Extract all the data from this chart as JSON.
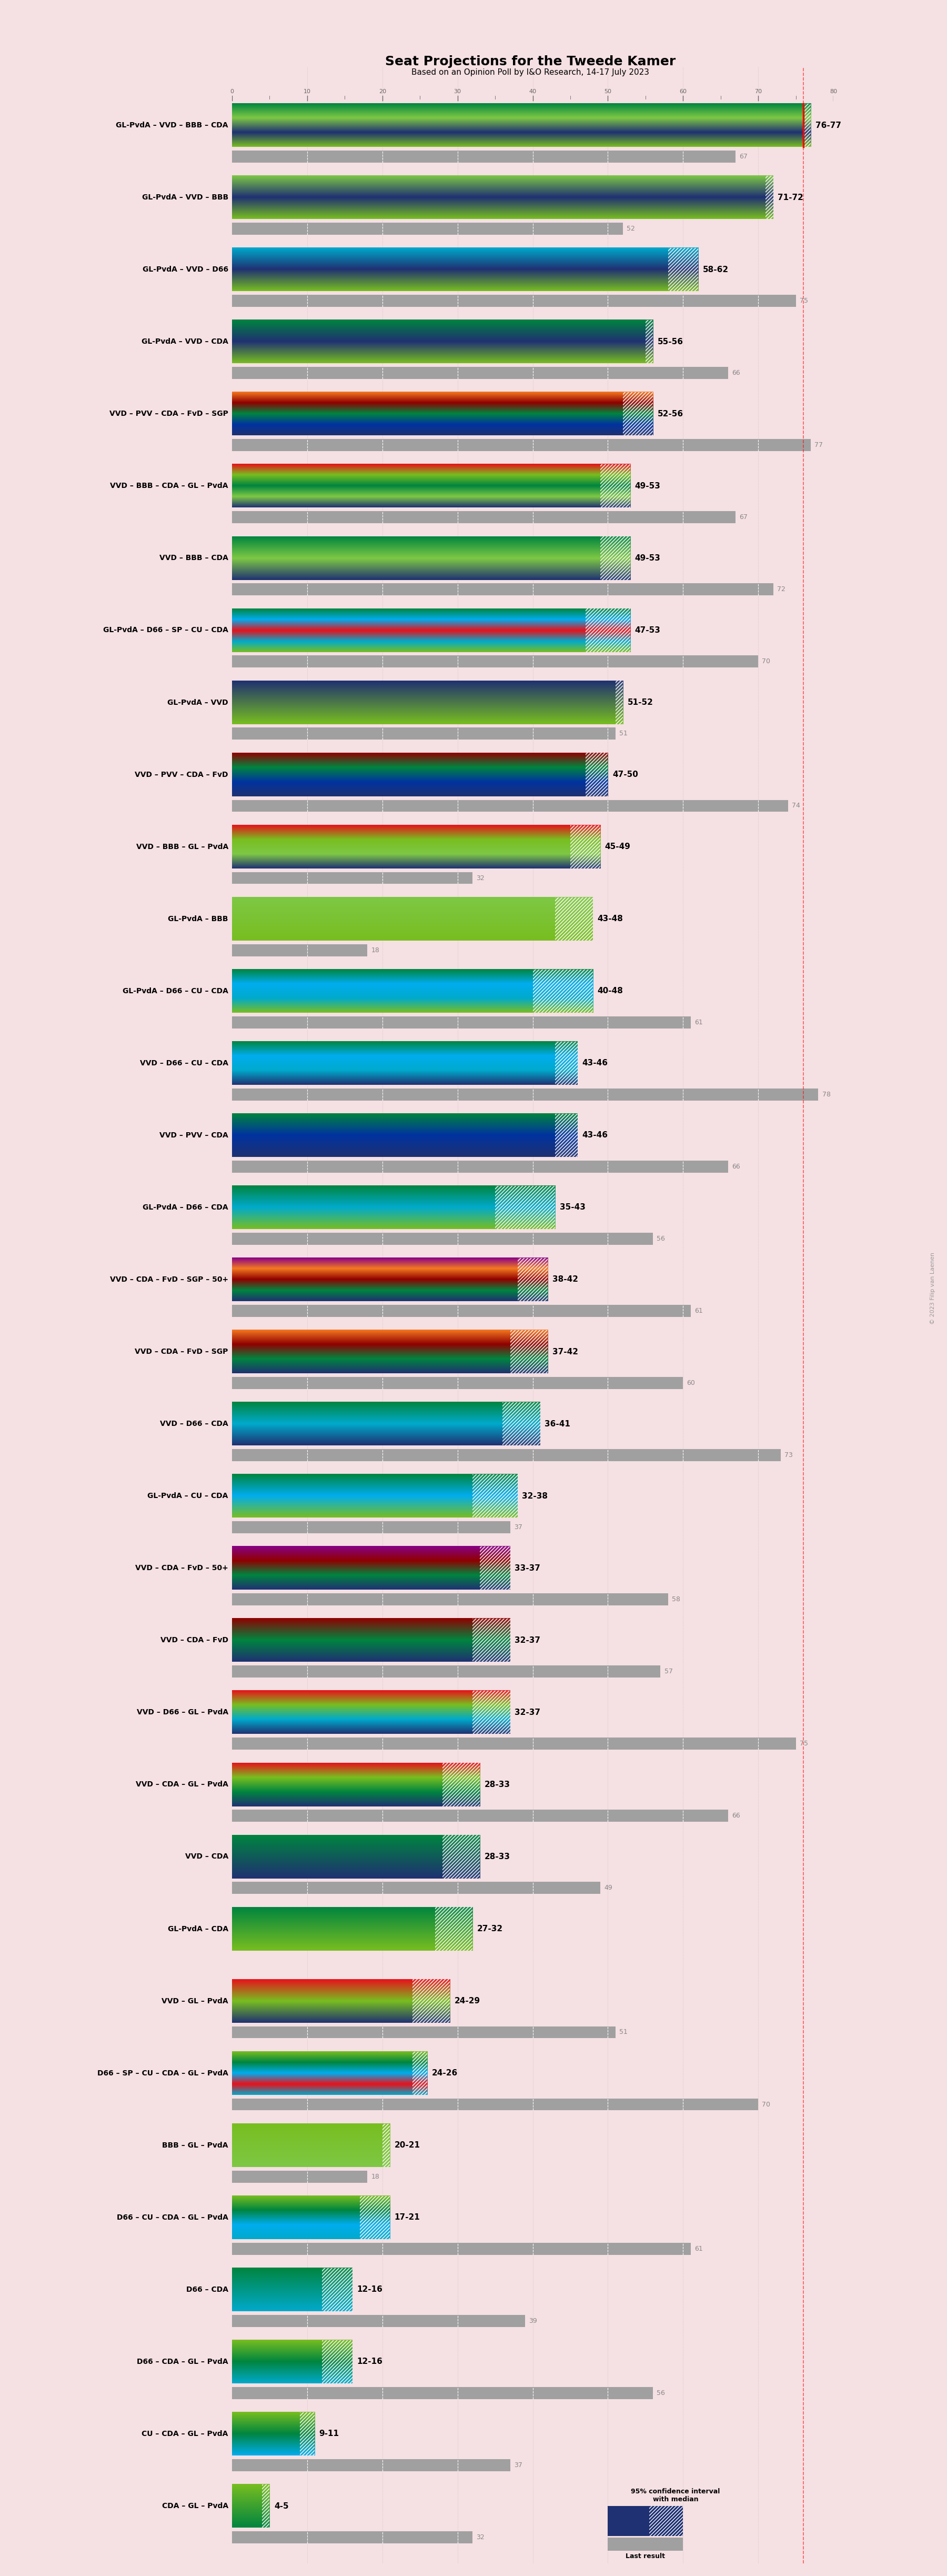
{
  "title": "Seat Projections for the Tweede Kamer",
  "subtitle": "Based on an Opinion Poll by I&O Research, 14-17 July 2023",
  "background_color": "#f5e0e3",
  "coalitions": [
    {
      "label": "GL-PvdA – VVD – BBB – CDA",
      "low": 76,
      "high": 77,
      "last": 67,
      "underline": false
    },
    {
      "label": "GL-PvdA – VVD – BBB",
      "low": 71,
      "high": 72,
      "last": 52,
      "underline": false
    },
    {
      "label": "GL-PvdA – VVD – D66",
      "low": 58,
      "high": 62,
      "last": 75,
      "underline": false
    },
    {
      "label": "GL-PvdA – VVD – CDA",
      "low": 55,
      "high": 56,
      "last": 66,
      "underline": false
    },
    {
      "label": "VVD – PVV – CDA – FvD – SGP",
      "low": 52,
      "high": 56,
      "last": 77,
      "underline": false
    },
    {
      "label": "VVD – BBB – CDA – GL – PvdA",
      "low": 49,
      "high": 53,
      "last": 67,
      "underline": false
    },
    {
      "label": "VVD – BBB – CDA",
      "low": 49,
      "high": 53,
      "last": 72,
      "underline": false
    },
    {
      "label": "GL-PvdA – D66 – SP – CU – CDA",
      "low": 47,
      "high": 53,
      "last": 70,
      "underline": false
    },
    {
      "label": "GL-PvdA – VVD",
      "low": 51,
      "high": 52,
      "last": 51,
      "underline": false
    },
    {
      "label": "VVD – PVV – CDA – FvD",
      "low": 47,
      "high": 50,
      "last": 74,
      "underline": false
    },
    {
      "label": "VVD – BBB – GL – PvdA",
      "low": 45,
      "high": 49,
      "last": 32,
      "underline": false
    },
    {
      "label": "GL-PvdA – BBB",
      "low": 43,
      "high": 48,
      "last": 18,
      "underline": false
    },
    {
      "label": "GL-PvdA – D66 – CU – CDA",
      "low": 40,
      "high": 48,
      "last": 61,
      "underline": false
    },
    {
      "label": "VVD – D66 – CU – CDA",
      "low": 43,
      "high": 46,
      "last": 78,
      "underline": true
    },
    {
      "label": "VVD – PVV – CDA",
      "low": 43,
      "high": 46,
      "last": 66,
      "underline": false
    },
    {
      "label": "GL-PvdA – D66 – CDA",
      "low": 35,
      "high": 43,
      "last": 56,
      "underline": false
    },
    {
      "label": "VVD – CDA – FvD – SGP – 50+",
      "low": 38,
      "high": 42,
      "last": 61,
      "underline": false
    },
    {
      "label": "VVD – CDA – FvD – SGP",
      "low": 37,
      "high": 42,
      "last": 60,
      "underline": false
    },
    {
      "label": "VVD – D66 – CDA",
      "low": 36,
      "high": 41,
      "last": 73,
      "underline": false
    },
    {
      "label": "GL-PvdA – CU – CDA",
      "low": 32,
      "high": 38,
      "last": 37,
      "underline": false
    },
    {
      "label": "VVD – CDA – FvD – 50+",
      "low": 33,
      "high": 37,
      "last": 58,
      "underline": false
    },
    {
      "label": "VVD – CDA – FvD",
      "low": 32,
      "high": 37,
      "last": 57,
      "underline": false
    },
    {
      "label": "VVD – D66 – GL – PvdA",
      "low": 32,
      "high": 37,
      "last": 75,
      "underline": false
    },
    {
      "label": "VVD – CDA – GL – PvdA",
      "low": 28,
      "high": 33,
      "last": 66,
      "underline": false
    },
    {
      "label": "VVD – CDA",
      "low": 28,
      "high": 33,
      "last": 49,
      "underline": false
    },
    {
      "label": "GL-PvdA – CDA",
      "low": 27,
      "high": 32,
      "last": null,
      "underline": false
    },
    {
      "label": "VVD – GL – PvdA",
      "low": 24,
      "high": 29,
      "last": 51,
      "underline": false
    },
    {
      "label": "D66 – SP – CU – CDA – GL – PvdA",
      "low": 24,
      "high": 26,
      "last": 70,
      "underline": false
    },
    {
      "label": "BBB – GL – PvdA",
      "low": 20,
      "high": 21,
      "last": 18,
      "underline": false
    },
    {
      "label": "D66 – CU – CDA – GL – PvdA",
      "low": 17,
      "high": 21,
      "last": 61,
      "underline": false
    },
    {
      "label": "D66 – CDA",
      "low": 12,
      "high": 16,
      "last": 39,
      "underline": false
    },
    {
      "label": "D66 – CDA – GL – PvdA",
      "low": 12,
      "high": 16,
      "last": 56,
      "underline": false
    },
    {
      "label": "CU – CDA – GL – PvdA",
      "low": 9,
      "high": 11,
      "last": 37,
      "underline": false
    },
    {
      "label": "CDA – GL – PvdA",
      "low": 4,
      "high": 5,
      "last": 32,
      "underline": false
    }
  ],
  "bar_gradient_colors": [
    [
      "#78be20",
      "#1f3172",
      "#7ec845",
      "#00853f"
    ],
    [
      "#78be20",
      "#1f3172",
      "#7ec845"
    ],
    [
      "#78be20",
      "#1f3172",
      "#00aacc"
    ],
    [
      "#78be20",
      "#1f3172",
      "#00853f"
    ],
    [
      "#1f3172",
      "#0033a0",
      "#00853f",
      "#900000",
      "#f47920"
    ],
    [
      "#1f3172",
      "#7ec845",
      "#00853f",
      "#78be20",
      "#e8111a"
    ],
    [
      "#1f3172",
      "#7ec845",
      "#00853f"
    ],
    [
      "#78be20",
      "#00aacc",
      "#e8111a",
      "#00adee",
      "#00853f"
    ],
    [
      "#78be20",
      "#1f3172"
    ],
    [
      "#1f3172",
      "#0033a0",
      "#00853f",
      "#900000"
    ],
    [
      "#1f3172",
      "#7ec845",
      "#78be20",
      "#e8111a"
    ],
    [
      "#78be20",
      "#7ec845"
    ],
    [
      "#78be20",
      "#00aacc",
      "#00adee",
      "#00853f"
    ],
    [
      "#1f3172",
      "#00aacc",
      "#00adee",
      "#00853f"
    ],
    [
      "#1f3172",
      "#0033a0",
      "#00853f"
    ],
    [
      "#78be20",
      "#00aacc",
      "#00853f"
    ],
    [
      "#1f3172",
      "#00853f",
      "#900000",
      "#f47920",
      "#880088"
    ],
    [
      "#1f3172",
      "#00853f",
      "#900000",
      "#f47920"
    ],
    [
      "#1f3172",
      "#00aacc",
      "#00853f"
    ],
    [
      "#78be20",
      "#00adee",
      "#00853f"
    ],
    [
      "#1f3172",
      "#00853f",
      "#900000",
      "#880088"
    ],
    [
      "#1f3172",
      "#00853f",
      "#900000"
    ],
    [
      "#1f3172",
      "#00aacc",
      "#78be20",
      "#e8111a"
    ],
    [
      "#1f3172",
      "#00853f",
      "#78be20",
      "#e8111a"
    ],
    [
      "#1f3172",
      "#00853f"
    ],
    [
      "#78be20",
      "#00853f"
    ],
    [
      "#1f3172",
      "#78be20",
      "#e8111a"
    ],
    [
      "#00aacc",
      "#e8111a",
      "#00adee",
      "#00853f",
      "#78be20"
    ],
    [
      "#7ec845",
      "#78be20"
    ],
    [
      "#00aacc",
      "#00adee",
      "#00853f",
      "#78be20"
    ],
    [
      "#00aacc",
      "#00853f"
    ],
    [
      "#00aacc",
      "#00853f",
      "#78be20"
    ],
    [
      "#00adee",
      "#00853f",
      "#78be20"
    ],
    [
      "#00853f",
      "#78be20"
    ]
  ],
  "xlim_max": 80,
  "majority": 76,
  "copyright": "© 2023 Filip van Laenen"
}
